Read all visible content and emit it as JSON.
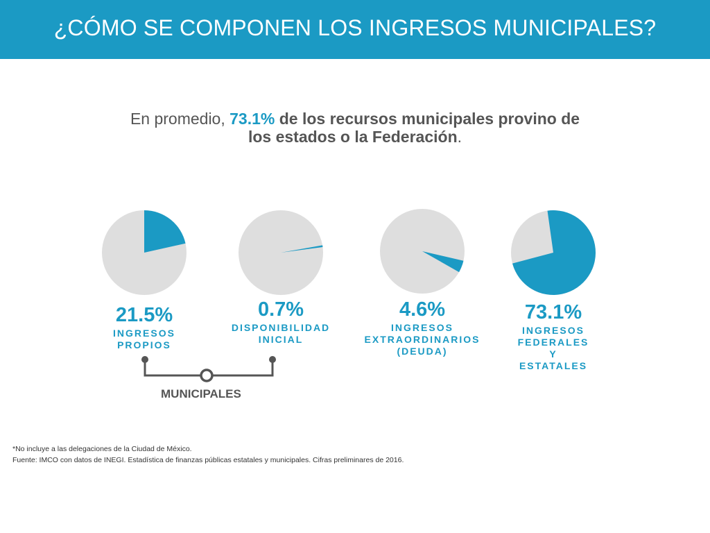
{
  "header": {
    "title": "¿CÓMO SE COMPONEN LOS INGRESOS MUNICIPALES?"
  },
  "intro": {
    "lead": "En promedio, ",
    "pct": "73.1%",
    "rest_line1": " de los recursos municipales provino de",
    "rest_line2": "los estados o la Federación",
    "end": "."
  },
  "chart_data": {
    "type": "pie",
    "colors": {
      "highlight": "#1b9ac4",
      "remainder": "#dedede",
      "text": "#1b9ac4"
    },
    "series": [
      {
        "value": 21.5,
        "value_label": "21.5%",
        "label_lines": [
          "INGRESOS",
          "PROPIOS"
        ]
      },
      {
        "value": 0.7,
        "value_label": "0.7%",
        "label_lines": [
          "DISPONIBILIDAD",
          "INICIAL"
        ]
      },
      {
        "value": 4.6,
        "value_label": "4.6%",
        "label_lines": [
          "INGRESOS",
          "EXTRAORDINARIOS",
          "(DEUDA)"
        ]
      },
      {
        "value": 73.1,
        "value_label": "73.1%",
        "label_lines": [
          "INGRESOS",
          "FEDERALES",
          "Y",
          "ESTATALES"
        ]
      }
    ]
  },
  "group": {
    "label": "MUNICIPALES",
    "color": "#555555"
  },
  "footnotes": {
    "note": "*No incluye a las delegaciones de la Ciudad de México.",
    "source": "Fuente: IMCO con datos de INEGI. Estadística de finanzas públicas estatales y municipales. Cifras preliminares de 2016."
  }
}
